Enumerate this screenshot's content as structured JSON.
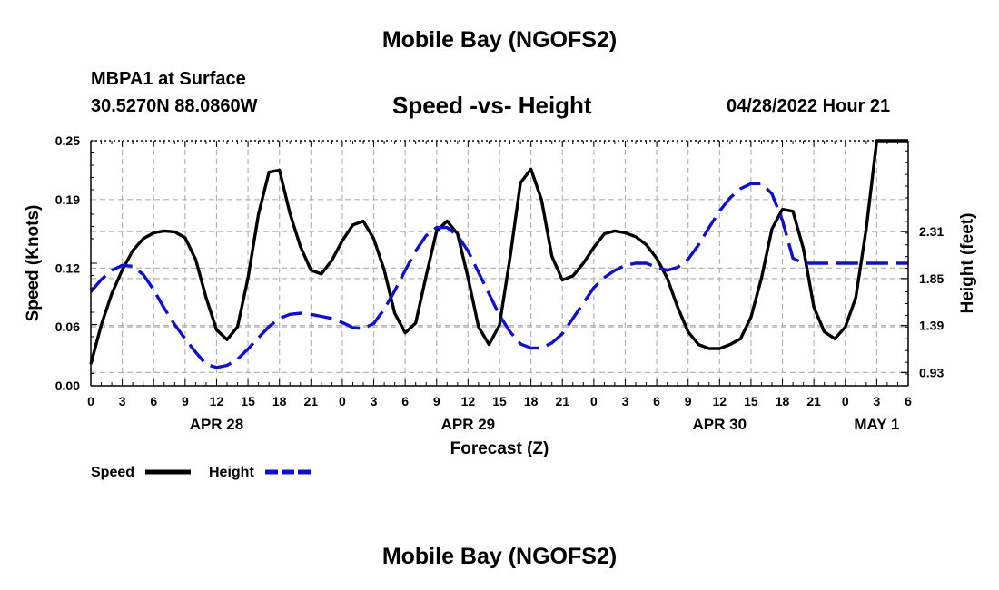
{
  "header": {
    "title": "Mobile Bay (NGOFS2)",
    "station": "MBPA1 at Surface",
    "coords": "30.5270N  88.0860W",
    "subtitle": "Speed -vs- Height",
    "datetime": "04/28/2022 Hour 21"
  },
  "footer": {
    "title": "Mobile Bay (NGOFS2)"
  },
  "colors": {
    "speed": "#000000",
    "height": "#1010cc",
    "grid": "#b4b4b4"
  },
  "chart_data": {
    "type": "line",
    "title": "Speed -vs- Height",
    "xlabel": "Forecast (Z)",
    "ylabel": "Speed (Knots)",
    "y2label": "Height (feet)",
    "x_unit": "hours since APR 28 00Z",
    "xlim": [
      0,
      78
    ],
    "ylim": [
      0.0,
      0.25
    ],
    "y2lim": [
      0.8,
      3.2
    ],
    "x_ticks": [
      0,
      3,
      6,
      9,
      12,
      15,
      18,
      21,
      24,
      27,
      30,
      33,
      36,
      39,
      42,
      45,
      48,
      51,
      54,
      57,
      60,
      63,
      66,
      69,
      72,
      75,
      78
    ],
    "x_tick_labels": [
      "0",
      "3",
      "6",
      "9",
      "12",
      "15",
      "18",
      "21",
      "0",
      "3",
      "6",
      "9",
      "12",
      "15",
      "18",
      "21",
      "0",
      "3",
      "6",
      "9",
      "12",
      "15",
      "18",
      "21",
      "0",
      "3",
      "6"
    ],
    "day_labels": [
      {
        "x": 12,
        "label": "APR 28"
      },
      {
        "x": 36,
        "label": "APR 29"
      },
      {
        "x": 60,
        "label": "APR 30"
      },
      {
        "x": 75,
        "label": "MAY 1"
      }
    ],
    "y_ticks": [
      0.0,
      0.06,
      0.12,
      0.19,
      0.25
    ],
    "y_tick_labels": [
      "0.00",
      "0.06",
      "0.12",
      "0.19",
      "0.25"
    ],
    "y2_ticks": [
      0.93,
      1.39,
      1.85,
      2.31
    ],
    "y2_tick_labels": [
      "0.93",
      "1.39",
      "1.85",
      "2.31"
    ],
    "series": [
      {
        "name": "Speed",
        "axis": "left",
        "style": "solid",
        "x": [
          0,
          1,
          2,
          3,
          4,
          5,
          6,
          7,
          8,
          9,
          10,
          11,
          12,
          13,
          14,
          15,
          16,
          17,
          18,
          19,
          20,
          21,
          22,
          23,
          24,
          25,
          26,
          27,
          28,
          29,
          30,
          31,
          32,
          33,
          34,
          35,
          36,
          37,
          38,
          39,
          40,
          41,
          42,
          43,
          44,
          45,
          46,
          47,
          48,
          49,
          50,
          51,
          52,
          53,
          54,
          55,
          56,
          57,
          58,
          59,
          60,
          61,
          62,
          63,
          64,
          65,
          66,
          67,
          68,
          69,
          70,
          71,
          72,
          73,
          74,
          75,
          76,
          77,
          78
        ],
        "values": [
          0.022,
          0.062,
          0.094,
          0.118,
          0.138,
          0.15,
          0.156,
          0.158,
          0.157,
          0.151,
          0.129,
          0.09,
          0.057,
          0.047,
          0.06,
          0.11,
          0.175,
          0.218,
          0.22,
          0.176,
          0.142,
          0.118,
          0.114,
          0.128,
          0.148,
          0.164,
          0.168,
          0.15,
          0.118,
          0.074,
          0.054,
          0.064,
          0.112,
          0.158,
          0.168,
          0.155,
          0.11,
          0.06,
          0.042,
          0.062,
          0.13,
          0.207,
          0.221,
          0.19,
          0.132,
          0.108,
          0.112,
          0.125,
          0.141,
          0.155,
          0.158,
          0.156,
          0.152,
          0.144,
          0.13,
          0.11,
          0.08,
          0.055,
          0.042,
          0.038,
          0.038,
          0.042,
          0.048,
          0.07,
          0.11,
          0.16,
          0.18,
          0.178,
          0.14,
          0.08,
          0.055,
          0.048,
          0.06,
          0.09,
          0.16,
          0.25,
          0.25,
          0.25,
          0.25
        ]
      },
      {
        "name": "Height",
        "axis": "right",
        "style": "dashed",
        "x": [
          0,
          1,
          2,
          3,
          4,
          5,
          6,
          7,
          8,
          9,
          10,
          11,
          12,
          13,
          14,
          15,
          16,
          17,
          18,
          19,
          20,
          21,
          22,
          23,
          24,
          25,
          26,
          27,
          28,
          29,
          30,
          31,
          32,
          33,
          34,
          35,
          36,
          37,
          38,
          39,
          40,
          41,
          42,
          43,
          44,
          45,
          46,
          47,
          48,
          49,
          50,
          51,
          52,
          53,
          54,
          55,
          56,
          57,
          58,
          59,
          60,
          61,
          62,
          63,
          64,
          65,
          66,
          67,
          68,
          69,
          70,
          71,
          72,
          73,
          74,
          75,
          76,
          77,
          78
        ],
        "values": [
          1.72,
          1.84,
          1.93,
          1.98,
          1.97,
          1.89,
          1.74,
          1.56,
          1.4,
          1.26,
          1.13,
          1.01,
          0.98,
          1.0,
          1.06,
          1.16,
          1.27,
          1.38,
          1.46,
          1.5,
          1.51,
          1.5,
          1.48,
          1.46,
          1.42,
          1.37,
          1.36,
          1.41,
          1.55,
          1.73,
          1.93,
          2.12,
          2.27,
          2.35,
          2.35,
          2.27,
          2.12,
          1.91,
          1.7,
          1.49,
          1.33,
          1.21,
          1.17,
          1.17,
          1.22,
          1.31,
          1.46,
          1.61,
          1.76,
          1.86,
          1.93,
          1.98,
          2.0,
          2.0,
          1.96,
          1.93,
          1.96,
          2.04,
          2.18,
          2.35,
          2.51,
          2.64,
          2.73,
          2.78,
          2.78,
          2.68,
          2.42,
          2.05,
          2.0,
          2.0,
          2.0,
          2.0,
          2.0,
          2.0,
          2.0,
          2.0,
          2.0,
          2.0,
          2.0
        ]
      }
    ],
    "legend": [
      {
        "label": "Speed",
        "style": "solid"
      },
      {
        "label": "Height",
        "style": "dashed"
      }
    ],
    "legend_position": "bottom-left",
    "grid": true
  }
}
